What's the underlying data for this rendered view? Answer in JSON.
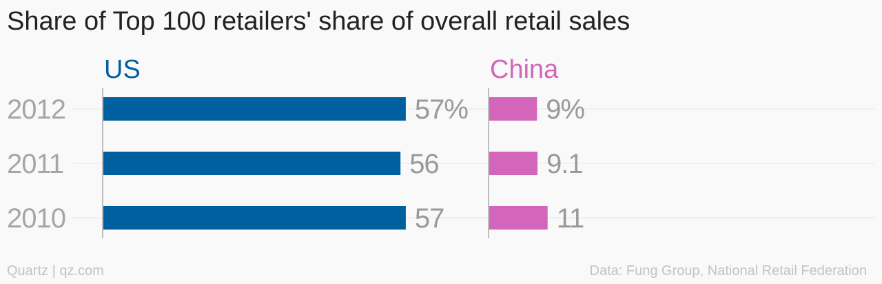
{
  "chart_data": {
    "type": "bar",
    "title": "Share of Top 100 retailers' share of overall retail sales",
    "categories": [
      "2012",
      "2011",
      "2010"
    ],
    "series": [
      {
        "name": "US",
        "values": [
          57,
          56,
          57
        ],
        "labels": [
          "57%",
          "56",
          "57"
        ],
        "color": "#00609f"
      },
      {
        "name": "China",
        "values": [
          9,
          9.1,
          11
        ],
        "labels": [
          "9%",
          "9.1",
          "11"
        ],
        "color": "#d365ba"
      }
    ],
    "xlim": [
      0,
      100
    ],
    "grid": true,
    "orientation": "horizontal"
  },
  "footer": {
    "source_left": "Quartz | qz.com",
    "source_right": "Data: Fung Group, National Retail Federation"
  },
  "colors": {
    "background": "#f9f9f9",
    "category_label": "#a6a6a6",
    "value_label": "#999999",
    "gridline": "#e6e6e6",
    "axis": "#aaaaaa"
  }
}
